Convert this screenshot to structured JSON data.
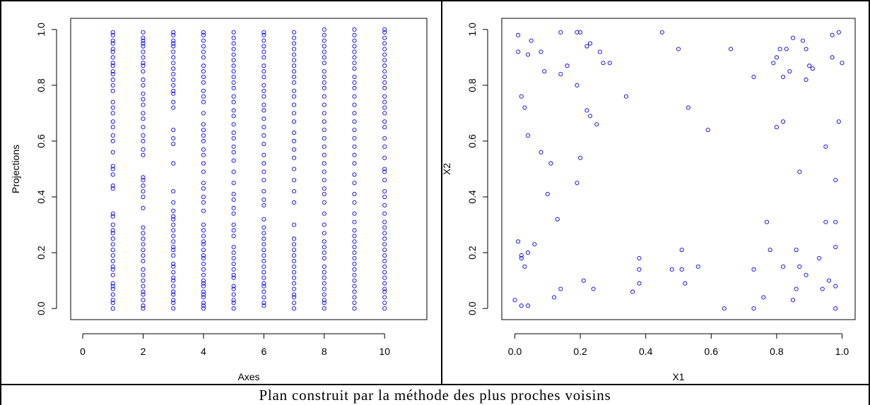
{
  "caption": "Plan construit par la méthode des plus proches voisins",
  "chart_data": [
    {
      "type": "scatter",
      "xlabel": "Axes",
      "ylabel": "Projections",
      "xlim": [
        -0.4,
        11.4
      ],
      "ylim": [
        -0.04,
        1.04
      ],
      "xticks": [
        0,
        2,
        4,
        6,
        8,
        10
      ],
      "yticks": [
        0.0,
        0.2,
        0.4,
        0.6,
        0.8,
        1.0
      ],
      "grid": false,
      "marker_color": "#0000ff",
      "series": [
        {
          "x": 1,
          "y": [
            0.0,
            0.02,
            0.03,
            0.05,
            0.07,
            0.08,
            0.09,
            0.12,
            0.14,
            0.15,
            0.17,
            0.19,
            0.21,
            0.23,
            0.25,
            0.27,
            0.28,
            0.3,
            0.33,
            0.34,
            0.43,
            0.44,
            0.48,
            0.5,
            0.51,
            0.56,
            0.6,
            0.62,
            0.65,
            0.67,
            0.7,
            0.72,
            0.74,
            0.78,
            0.8,
            0.82,
            0.84,
            0.85,
            0.87,
            0.88,
            0.9,
            0.92,
            0.93,
            0.95,
            0.96,
            0.98,
            0.99
          ]
        },
        {
          "x": 2,
          "y": [
            0.0,
            0.01,
            0.03,
            0.05,
            0.06,
            0.08,
            0.1,
            0.12,
            0.14,
            0.17,
            0.19,
            0.21,
            0.23,
            0.25,
            0.27,
            0.29,
            0.36,
            0.4,
            0.42,
            0.44,
            0.46,
            0.47,
            0.55,
            0.57,
            0.6,
            0.62,
            0.65,
            0.68,
            0.7,
            0.73,
            0.75,
            0.77,
            0.8,
            0.82,
            0.85,
            0.87,
            0.88,
            0.9,
            0.92,
            0.94,
            0.95,
            0.96,
            0.97,
            0.99
          ]
        },
        {
          "x": 3,
          "y": [
            0.0,
            0.02,
            0.03,
            0.05,
            0.06,
            0.08,
            0.1,
            0.11,
            0.13,
            0.15,
            0.16,
            0.19,
            0.21,
            0.22,
            0.24,
            0.26,
            0.28,
            0.3,
            0.32,
            0.33,
            0.35,
            0.38,
            0.42,
            0.52,
            0.59,
            0.61,
            0.64,
            0.72,
            0.74,
            0.77,
            0.78,
            0.8,
            0.82,
            0.84,
            0.86,
            0.88,
            0.9,
            0.92,
            0.94,
            0.95,
            0.96,
            0.98,
            0.99
          ]
        },
        {
          "x": 4,
          "y": [
            0.0,
            0.01,
            0.02,
            0.04,
            0.05,
            0.06,
            0.08,
            0.09,
            0.1,
            0.12,
            0.14,
            0.16,
            0.18,
            0.19,
            0.21,
            0.23,
            0.24,
            0.26,
            0.28,
            0.3,
            0.35,
            0.38,
            0.4,
            0.43,
            0.45,
            0.49,
            0.52,
            0.55,
            0.57,
            0.6,
            0.62,
            0.64,
            0.66,
            0.7,
            0.74,
            0.76,
            0.78,
            0.81,
            0.83,
            0.85,
            0.87,
            0.9,
            0.92,
            0.94,
            0.96,
            0.98,
            0.99
          ]
        },
        {
          "x": 5,
          "y": [
            0.0,
            0.02,
            0.03,
            0.05,
            0.07,
            0.08,
            0.11,
            0.12,
            0.14,
            0.16,
            0.18,
            0.2,
            0.22,
            0.26,
            0.28,
            0.3,
            0.34,
            0.36,
            0.39,
            0.41,
            0.45,
            0.49,
            0.53,
            0.56,
            0.58,
            0.61,
            0.63,
            0.66,
            0.69,
            0.71,
            0.74,
            0.76,
            0.79,
            0.81,
            0.83,
            0.85,
            0.87,
            0.89,
            0.91,
            0.93,
            0.95,
            0.97,
            0.99
          ]
        },
        {
          "x": 6,
          "y": [
            0.01,
            0.02,
            0.04,
            0.06,
            0.08,
            0.09,
            0.11,
            0.13,
            0.15,
            0.17,
            0.19,
            0.21,
            0.23,
            0.25,
            0.27,
            0.29,
            0.32,
            0.37,
            0.39,
            0.42,
            0.46,
            0.49,
            0.52,
            0.55,
            0.59,
            0.62,
            0.65,
            0.68,
            0.71,
            0.73,
            0.76,
            0.78,
            0.8,
            0.83,
            0.85,
            0.87,
            0.9,
            0.92,
            0.94,
            0.96,
            0.98,
            0.99
          ]
        },
        {
          "x": 7,
          "y": [
            0.0,
            0.02,
            0.04,
            0.05,
            0.07,
            0.09,
            0.11,
            0.13,
            0.15,
            0.17,
            0.19,
            0.21,
            0.23,
            0.25,
            0.3,
            0.38,
            0.42,
            0.46,
            0.5,
            0.54,
            0.57,
            0.6,
            0.63,
            0.67,
            0.7,
            0.73,
            0.76,
            0.78,
            0.81,
            0.83,
            0.85,
            0.87,
            0.89,
            0.91,
            0.93,
            0.95,
            0.97,
            0.99
          ]
        },
        {
          "x": 8,
          "y": [
            0.0,
            0.02,
            0.03,
            0.05,
            0.07,
            0.09,
            0.11,
            0.13,
            0.15,
            0.18,
            0.2,
            0.22,
            0.24,
            0.27,
            0.3,
            0.34,
            0.38,
            0.41,
            0.43,
            0.46,
            0.49,
            0.52,
            0.55,
            0.58,
            0.61,
            0.64,
            0.67,
            0.7,
            0.73,
            0.76,
            0.79,
            0.81,
            0.83,
            0.85,
            0.88,
            0.9,
            0.92,
            0.94,
            0.96,
            0.98,
            1.0
          ]
        },
        {
          "x": 9,
          "y": [
            0.0,
            0.02,
            0.04,
            0.06,
            0.08,
            0.1,
            0.12,
            0.14,
            0.16,
            0.18,
            0.2,
            0.22,
            0.24,
            0.26,
            0.28,
            0.31,
            0.34,
            0.38,
            0.41,
            0.45,
            0.48,
            0.52,
            0.55,
            0.58,
            0.61,
            0.64,
            0.67,
            0.7,
            0.73,
            0.76,
            0.79,
            0.81,
            0.83,
            0.86,
            0.88,
            0.9,
            0.92,
            0.94,
            0.96,
            0.98,
            1.0
          ]
        },
        {
          "x": 10,
          "y": [
            0.0,
            0.02,
            0.04,
            0.06,
            0.07,
            0.09,
            0.11,
            0.13,
            0.15,
            0.17,
            0.19,
            0.21,
            0.23,
            0.25,
            0.27,
            0.29,
            0.31,
            0.34,
            0.37,
            0.4,
            0.42,
            0.46,
            0.49,
            0.5,
            0.54,
            0.58,
            0.61,
            0.65,
            0.67,
            0.7,
            0.72,
            0.74,
            0.76,
            0.79,
            0.81,
            0.83,
            0.85,
            0.87,
            0.89,
            0.91,
            0.93,
            0.95,
            0.97,
            0.99,
            1.0
          ]
        }
      ]
    },
    {
      "type": "scatter",
      "xlabel": "X1",
      "ylabel": "X2",
      "xlim": [
        -0.04,
        1.04
      ],
      "ylim": [
        -0.04,
        1.04
      ],
      "xticks": [
        0.0,
        0.2,
        0.4,
        0.6,
        0.8,
        1.0
      ],
      "yticks": [
        0.0,
        0.2,
        0.4,
        0.6,
        0.8,
        1.0
      ],
      "grid": false,
      "marker_color": "#0000ff",
      "points": [
        [
          0.01,
          0.98
        ],
        [
          0.01,
          0.92
        ],
        [
          0.05,
          0.96
        ],
        [
          0.04,
          0.91
        ],
        [
          0.08,
          0.92
        ],
        [
          0.09,
          0.85
        ],
        [
          0.14,
          0.99
        ],
        [
          0.19,
          0.99
        ],
        [
          0.2,
          0.99
        ],
        [
          0.14,
          0.84
        ],
        [
          0.16,
          0.87
        ],
        [
          0.19,
          0.8
        ],
        [
          0.22,
          0.94
        ],
        [
          0.23,
          0.95
        ],
        [
          0.26,
          0.92
        ],
        [
          0.27,
          0.88
        ],
        [
          0.29,
          0.88
        ],
        [
          0.45,
          0.99
        ],
        [
          0.5,
          0.93
        ],
        [
          0.66,
          0.93
        ],
        [
          0.02,
          0.76
        ],
        [
          0.03,
          0.72
        ],
        [
          0.34,
          0.76
        ],
        [
          0.22,
          0.71
        ],
        [
          0.23,
          0.69
        ],
        [
          0.25,
          0.66
        ],
        [
          0.53,
          0.72
        ],
        [
          0.59,
          0.64
        ],
        [
          0.04,
          0.62
        ],
        [
          0.08,
          0.56
        ],
        [
          0.11,
          0.52
        ],
        [
          0.2,
          0.54
        ],
        [
          0.19,
          0.45
        ],
        [
          0.1,
          0.41
        ],
        [
          0.13,
          0.32
        ],
        [
          0.01,
          0.24
        ],
        [
          0.06,
          0.23
        ],
        [
          0.04,
          0.2
        ],
        [
          0.02,
          0.19
        ],
        [
          0.02,
          0.18
        ],
        [
          0.03,
          0.15
        ],
        [
          0.0,
          0.03
        ],
        [
          0.02,
          0.01
        ],
        [
          0.04,
          0.01
        ],
        [
          0.12,
          0.04
        ],
        [
          0.14,
          0.07
        ],
        [
          0.21,
          0.1
        ],
        [
          0.24,
          0.07
        ],
        [
          0.38,
          0.18
        ],
        [
          0.38,
          0.14
        ],
        [
          0.38,
          0.09
        ],
        [
          0.36,
          0.06
        ],
        [
          0.48,
          0.14
        ],
        [
          0.51,
          0.21
        ],
        [
          0.51,
          0.14
        ],
        [
          0.52,
          0.09
        ],
        [
          0.56,
          0.15
        ],
        [
          0.64,
          0.0
        ],
        [
          0.73,
          0.83
        ],
        [
          0.79,
          0.88
        ],
        [
          0.8,
          0.9
        ],
        [
          0.81,
          0.93
        ],
        [
          0.82,
          0.83
        ],
        [
          0.83,
          0.93
        ],
        [
          0.84,
          0.85
        ],
        [
          0.85,
          0.97
        ],
        [
          0.88,
          0.96
        ],
        [
          0.89,
          0.93
        ],
        [
          0.89,
          0.82
        ],
        [
          0.9,
          0.87
        ],
        [
          0.91,
          0.86
        ],
        [
          0.97,
          0.98
        ],
        [
          0.97,
          0.9
        ],
        [
          0.99,
          0.99
        ],
        [
          1.0,
          0.88
        ],
        [
          0.8,
          0.65
        ],
        [
          0.82,
          0.67
        ],
        [
          0.99,
          0.67
        ],
        [
          0.95,
          0.58
        ],
        [
          0.87,
          0.49
        ],
        [
          0.98,
          0.46
        ],
        [
          0.77,
          0.31
        ],
        [
          0.95,
          0.31
        ],
        [
          0.98,
          0.31
        ],
        [
          0.78,
          0.21
        ],
        [
          0.86,
          0.21
        ],
        [
          0.98,
          0.22
        ],
        [
          0.73,
          0.14
        ],
        [
          0.82,
          0.15
        ],
        [
          0.87,
          0.15
        ],
        [
          0.89,
          0.12
        ],
        [
          0.93,
          0.18
        ],
        [
          0.96,
          0.1
        ],
        [
          0.76,
          0.04
        ],
        [
          0.86,
          0.07
        ],
        [
          0.85,
          0.03
        ],
        [
          0.94,
          0.07
        ],
        [
          0.98,
          0.08
        ],
        [
          0.73,
          0.0
        ],
        [
          0.98,
          0.0
        ]
      ]
    }
  ]
}
